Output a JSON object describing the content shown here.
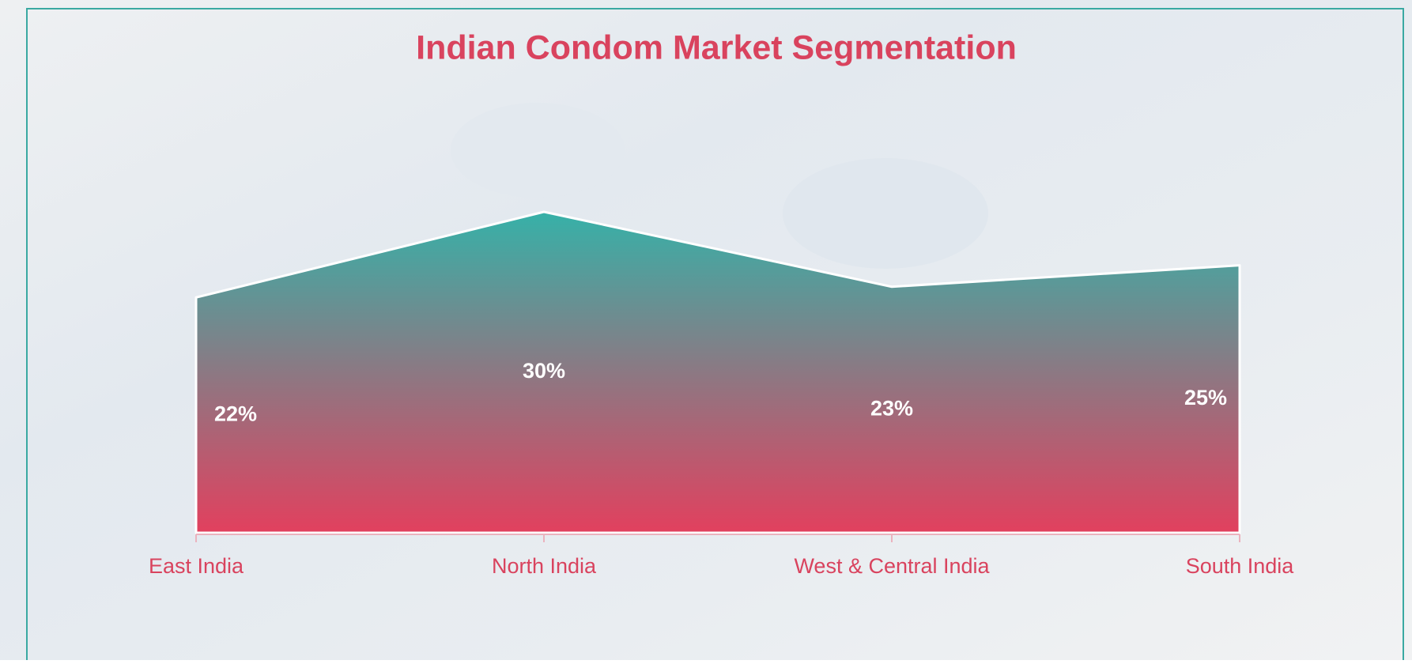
{
  "chart_data": {
    "type": "area",
    "title": "Indian Condom Market Segmentation",
    "categories": [
      "East India",
      "North India",
      "West & Central India",
      "South India"
    ],
    "values": [
      22,
      30,
      23,
      25
    ],
    "value_labels": [
      "22%",
      "30%",
      "23%",
      "25%"
    ],
    "colors": [
      "#36b1a8",
      "#e2405e"
    ]
  }
}
